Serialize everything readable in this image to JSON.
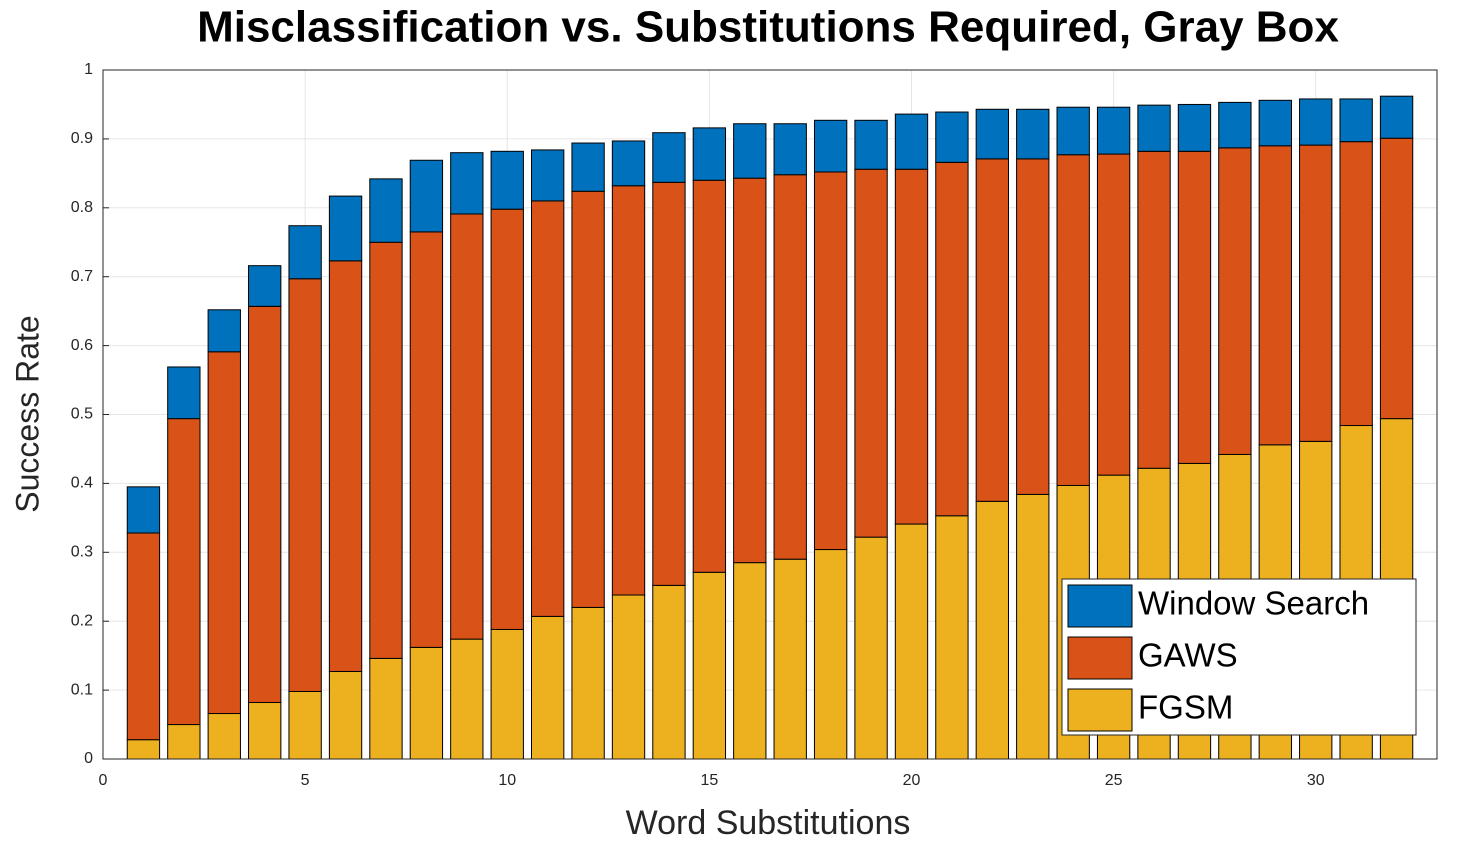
{
  "chart_data": {
    "type": "stacked_bar",
    "title": "Misclassification vs. Substitutions Required, Gray Box",
    "x_label": "Word Substitutions",
    "y_label": "Success Rate",
    "x": [
      1,
      2,
      3,
      4,
      5,
      6,
      7,
      8,
      9,
      10,
      11,
      12,
      13,
      14,
      15,
      16,
      17,
      18,
      19,
      20,
      21,
      22,
      23,
      24,
      25,
      26,
      27,
      28,
      29,
      30,
      31,
      32
    ],
    "series": [
      {
        "name": "FGSM",
        "color": "#edb120",
        "values": [
          0.028,
          0.05,
          0.066,
          0.082,
          0.098,
          0.127,
          0.146,
          0.162,
          0.174,
          0.188,
          0.207,
          0.22,
          0.238,
          0.252,
          0.271,
          0.285,
          0.29,
          0.304,
          0.322,
          0.341,
          0.353,
          0.374,
          0.384,
          0.397,
          0.412,
          0.422,
          0.429,
          0.442,
          0.456,
          0.461,
          0.484,
          0.494
        ]
      },
      {
        "name": "GAWS",
        "color": "#d95319",
        "values": [
          0.3,
          0.444,
          0.525,
          0.575,
          0.599,
          0.596,
          0.604,
          0.603,
          0.617,
          0.61,
          0.603,
          0.604,
          0.594,
          0.585,
          0.569,
          0.558,
          0.558,
          0.548,
          0.534,
          0.515,
          0.513,
          0.497,
          0.487,
          0.48,
          0.466,
          0.46,
          0.453,
          0.445,
          0.434,
          0.43,
          0.412,
          0.407
        ]
      },
      {
        "name": "Window Search",
        "color": "#0072bd",
        "values": [
          0.067,
          0.075,
          0.061,
          0.059,
          0.077,
          0.094,
          0.092,
          0.104,
          0.089,
          0.084,
          0.074,
          0.07,
          0.065,
          0.072,
          0.076,
          0.079,
          0.074,
          0.075,
          0.071,
          0.08,
          0.073,
          0.072,
          0.072,
          0.069,
          0.068,
          0.067,
          0.068,
          0.066,
          0.066,
          0.067,
          0.062,
          0.061
        ]
      }
    ],
    "xlim": [
      0,
      33
    ],
    "xticks": [
      0,
      5,
      10,
      15,
      20,
      25,
      30
    ],
    "ylim": [
      0,
      1
    ],
    "yticks": [
      0,
      0.1,
      0.2,
      0.3,
      0.4,
      0.5,
      0.6,
      0.7,
      0.8,
      0.9,
      1
    ],
    "grid": true,
    "legend": "lower-right"
  }
}
